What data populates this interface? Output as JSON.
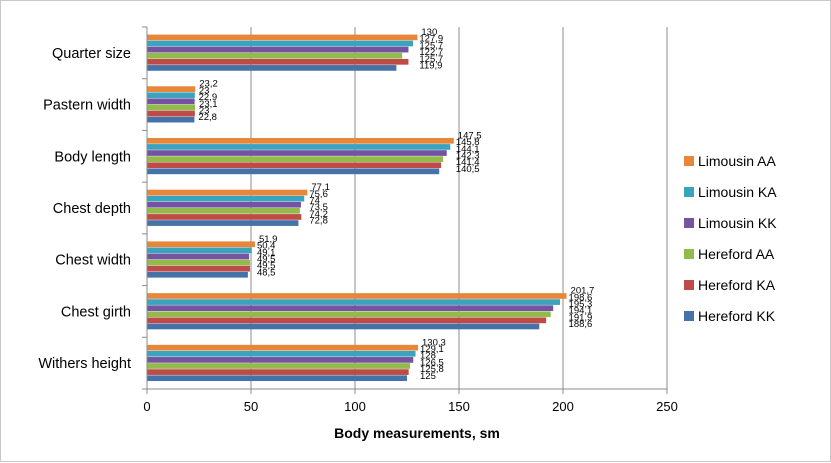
{
  "chart_data": {
    "type": "bar",
    "orientation": "horizontal",
    "title": "",
    "xlabel": "Body measurements, sm",
    "ylabel": "",
    "xlim": [
      0,
      250
    ],
    "xticks": [
      0,
      50,
      100,
      150,
      200,
      250
    ],
    "grid": "vertical major gridlines",
    "legend_position": "right",
    "categories": [
      "Quarter size",
      "Pastern width",
      "Body length",
      "Chest depth",
      "Chest width",
      "Chest girth",
      "Withers height"
    ],
    "series": [
      {
        "name": "Limousin AA",
        "color": "#E8873A",
        "values": [
          130,
          23.2,
          147.5,
          77.1,
          51.9,
          201.7,
          130.3
        ],
        "labels": [
          "130",
          "23,2",
          "147,5",
          "77,1",
          "51,9",
          "201,7",
          "130,3"
        ]
      },
      {
        "name": "Limousin KA",
        "color": "#3BA3BE",
        "values": [
          127.9,
          23,
          145.8,
          75.6,
          50.4,
          198.6,
          129.1
        ],
        "labels": [
          "127,9",
          "23",
          "145,8",
          "75,6",
          "50,4",
          "198,6",
          "129,1"
        ]
      },
      {
        "name": "Limousin KK",
        "color": "#7453A0",
        "values": [
          125.7,
          22.9,
          144.1,
          74,
          49.1,
          195.3,
          128
        ],
        "labels": [
          "125,7",
          "22,9",
          "144,1",
          "74",
          "49,1",
          "195,3",
          "128"
        ]
      },
      {
        "name": "Hereford AA",
        "color": "#93BB4B",
        "values": [
          122.7,
          23.1,
          142.3,
          73.5,
          49.5,
          194.1,
          126.5
        ],
        "labels": [
          "122,7",
          "23,1",
          "142,3",
          "73,5",
          "49,5",
          "194,1",
          "126,5"
        ]
      },
      {
        "name": "Hereford KA",
        "color": "#BE4B48",
        "values": [
          125.7,
          23,
          141.4,
          74.2,
          49.5,
          191.9,
          125.8
        ],
        "labels": [
          "125,7",
          "23",
          "141,4",
          "74,2",
          "49,5",
          "191,9",
          "125,8"
        ]
      },
      {
        "name": "Hereford KK",
        "color": "#4572A7",
        "values": [
          119.9,
          22.8,
          140.5,
          72.8,
          48.5,
          188.6,
          125
        ],
        "labels": [
          "119,9",
          "22,8",
          "140,5",
          "72,8",
          "48,5",
          "188,6",
          "125"
        ]
      }
    ]
  }
}
